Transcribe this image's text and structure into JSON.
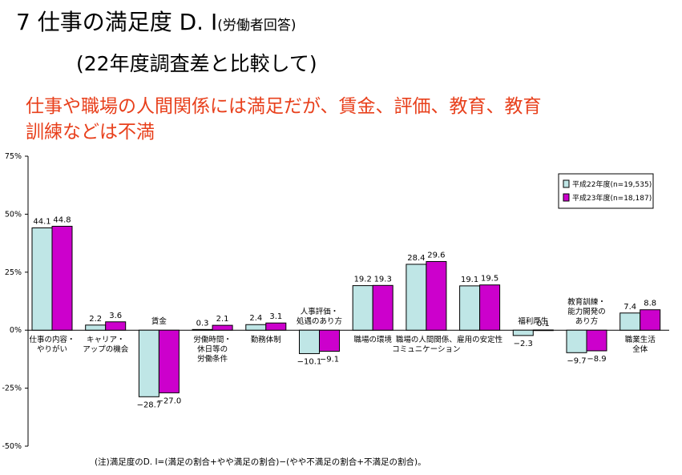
{
  "header": {
    "title_main": "7 仕事の満足度 D. I",
    "title_sub": "(労働者回答)",
    "subtitle": "(22年度調査差と比較して)",
    "headline": "仕事や職場の人間関係には満足だが、賃金、評価、教育、教育訓練などは不満"
  },
  "colors": {
    "series_2010": "#bfe6e6",
    "series_2011": "#cc00cc"
  },
  "chart_data": {
    "type": "bar",
    "ylim": [
      -50,
      75
    ],
    "yticks": [
      75,
      50,
      25,
      0,
      -25,
      -50
    ],
    "ytick_labels": [
      "75%",
      "50%",
      "25%",
      "0%",
      "-25%",
      "-50%"
    ],
    "legend_position": "top-right",
    "categories": [
      [
        "仕事の内容・",
        "やりがい"
      ],
      [
        "キャリア・",
        "アップの機会"
      ],
      [
        "賃金"
      ],
      [
        "労働時間・",
        "休日等の",
        "労働条件"
      ],
      [
        "勤務体制"
      ],
      [
        "人事評価・",
        "処遇のあり方"
      ],
      [
        "職場の環境"
      ],
      [
        "職場の人間関係、",
        "コミュニケーション"
      ],
      [
        "雇用の安定性"
      ],
      [
        "福利厚生"
      ],
      [
        "教育訓練・",
        "能力開発の",
        "あり方"
      ],
      [
        "職業生活",
        "全体"
      ]
    ],
    "series": [
      {
        "name": "平成22年度(n=19,535)",
        "values": [
          44.1,
          2.2,
          -28.7,
          0.3,
          2.4,
          -10.1,
          19.2,
          28.4,
          19.1,
          -2.3,
          -9.7,
          7.4
        ],
        "labels": [
          "44.1",
          "2.2",
          "−28.7",
          "0.3",
          "2.4",
          "−10.1",
          "19.2",
          "28.4",
          "19.1",
          "−2.3",
          "−9.7",
          "7.4"
        ]
      },
      {
        "name": "平成23年度(n=18,187)",
        "values": [
          44.8,
          3.6,
          -27.0,
          2.1,
          3.1,
          -9.1,
          19.3,
          29.6,
          19.5,
          0.1,
          -8.9,
          8.8
        ],
        "labels": [
          "44.8",
          "3.6",
          "−27.0",
          "2.1",
          "3.1",
          "−9.1",
          "19.3",
          "29.6",
          "19.5",
          "0.1",
          "−8.9",
          "8.8"
        ]
      }
    ]
  },
  "footnote": "(注)満足度のD. I=(満足の割合+やや満足の割合)−(やや不満足の割合+不満足の割合)。"
}
